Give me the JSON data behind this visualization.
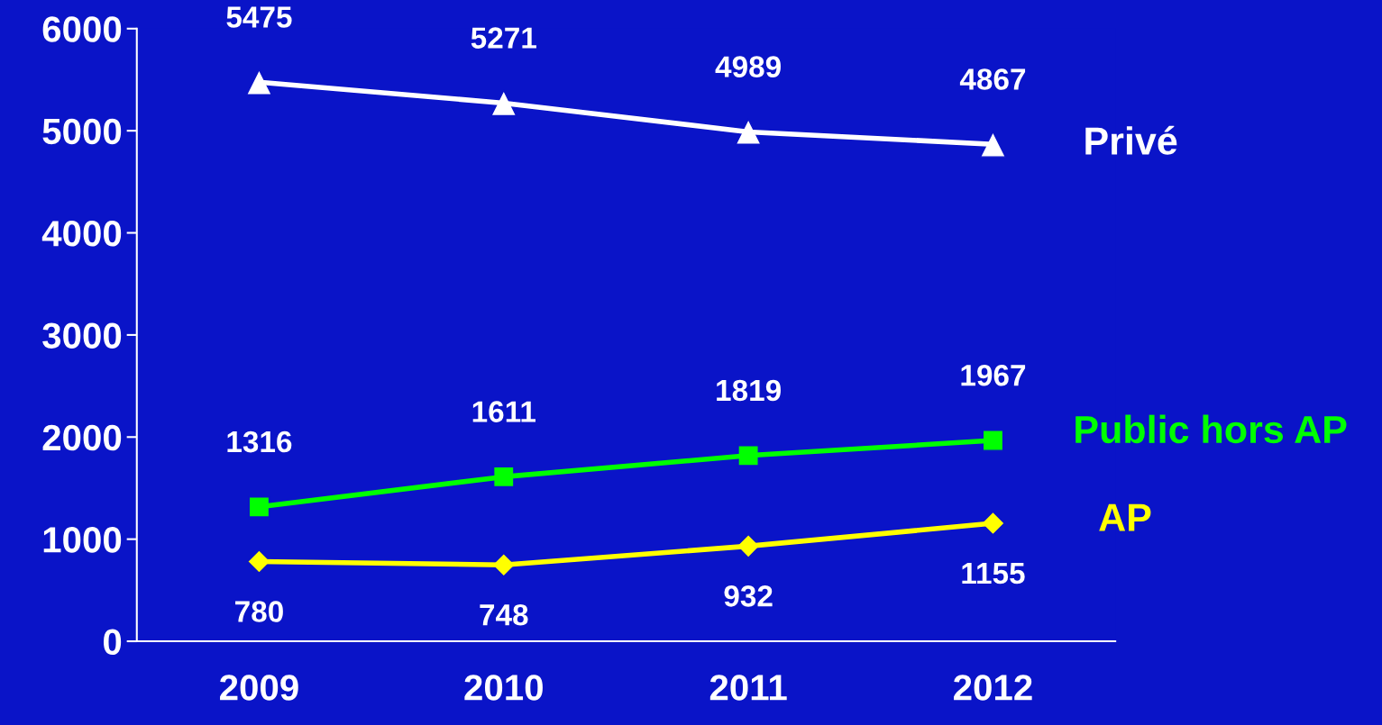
{
  "chart_data": {
    "type": "line",
    "categories": [
      "2009",
      "2010",
      "2011",
      "2012"
    ],
    "series": [
      {
        "name": "Privé",
        "color": "#ffffff",
        "marker": "triangle",
        "values": [
          5475,
          5271,
          4989,
          4867
        ]
      },
      {
        "name": "Public hors AP",
        "color": "#00ff00",
        "marker": "square",
        "values": [
          1316,
          1611,
          1819,
          1967
        ]
      },
      {
        "name": "AP",
        "color": "#ffff00",
        "marker": "diamond",
        "values": [
          780,
          748,
          932,
          1155
        ]
      }
    ],
    "ylim": [
      0,
      6000
    ],
    "yticks": [
      0,
      1000,
      2000,
      3000,
      4000,
      5000,
      6000
    ],
    "grid": false,
    "data_labels": true,
    "line_style": "solid"
  }
}
